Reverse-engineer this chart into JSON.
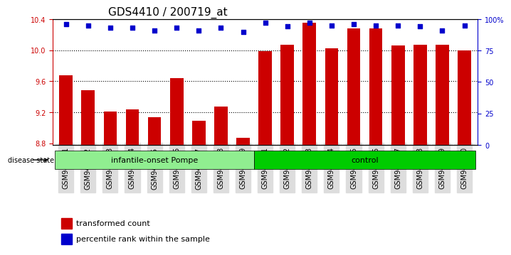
{
  "title": "GDS4410 / 200719_at",
  "samples": [
    "GSM947471",
    "GSM947472",
    "GSM947473",
    "GSM947474",
    "GSM947475",
    "GSM947476",
    "GSM947477",
    "GSM947478",
    "GSM947479",
    "GSM947461",
    "GSM947462",
    "GSM947463",
    "GSM947464",
    "GSM947465",
    "GSM947466",
    "GSM947467",
    "GSM947468",
    "GSM947469",
    "GSM947470"
  ],
  "red_values": [
    9.68,
    9.48,
    9.21,
    9.24,
    9.14,
    9.64,
    9.09,
    9.27,
    8.87,
    9.99,
    10.07,
    10.35,
    10.02,
    10.28,
    10.28,
    10.06,
    10.07,
    10.07,
    10.0
  ],
  "blue_values": [
    96,
    95,
    93,
    93,
    91,
    93,
    91,
    93,
    90,
    97,
    94,
    97,
    95,
    96,
    95,
    95,
    94,
    91,
    95
  ],
  "groups": [
    {
      "label": "infantile-onset Pompe",
      "start": 0,
      "end": 9,
      "color": "#90EE90"
    },
    {
      "label": "control",
      "start": 9,
      "end": 19,
      "color": "#00CC00"
    }
  ],
  "ylim_left": [
    8.78,
    10.4
  ],
  "ylim_right": [
    0,
    100
  ],
  "yticks_left": [
    8.8,
    9.2,
    9.6,
    10.0,
    10.4
  ],
  "yticks_right": [
    0,
    25,
    50,
    75,
    100
  ],
  "ytick_labels_right": [
    "0",
    "25",
    "50",
    "75",
    "100%"
  ],
  "bar_color": "#CC0000",
  "dot_color": "#0000CC",
  "grid_color": "#000000",
  "bg_color": "#FFFFFF",
  "disease_state_label": "disease state",
  "legend_red": "transformed count",
  "legend_blue": "percentile rank within the sample",
  "title_fontsize": 11,
  "axis_label_fontsize": 8,
  "tick_fontsize": 7
}
